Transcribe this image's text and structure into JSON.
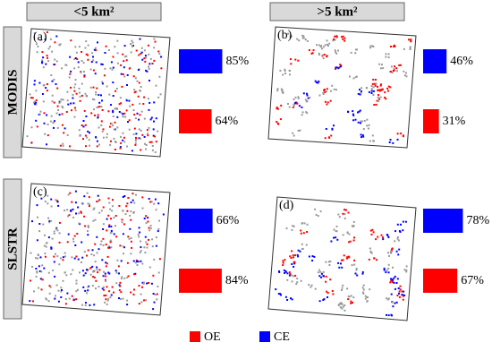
{
  "column_headers": [
    "<5 km²",
    ">5 km²"
  ],
  "row_labels": [
    "MODIS",
    "SLSTR"
  ],
  "legend": [
    {
      "name": "OE",
      "color": "#ff0000"
    },
    {
      "name": "CE",
      "color": "#0000ff"
    }
  ],
  "chart_data": [
    {
      "type": "bar",
      "label": "(a)",
      "values": [
        85,
        64
      ],
      "value_labels": [
        "85%",
        "64%"
      ],
      "colors": [
        "#0000ff",
        "#ff0000"
      ],
      "xlim": [
        0,
        100
      ]
    },
    {
      "type": "bar",
      "label": "(b)",
      "values": [
        46,
        31
      ],
      "value_labels": [
        "46%",
        "31%"
      ],
      "colors": [
        "#0000ff",
        "#ff0000"
      ],
      "xlim": [
        0,
        100
      ]
    },
    {
      "type": "bar",
      "label": "(c)",
      "values": [
        66,
        84
      ],
      "value_labels": [
        "66%",
        "84%"
      ],
      "colors": [
        "#0000ff",
        "#ff0000"
      ],
      "xlim": [
        0,
        100
      ]
    },
    {
      "type": "bar",
      "label": "(d)",
      "values": [
        78,
        67
      ],
      "value_labels": [
        "78%",
        "67%"
      ],
      "colors": [
        "#0000ff",
        "#ff0000"
      ],
      "xlim": [
        0,
        100
      ]
    }
  ]
}
